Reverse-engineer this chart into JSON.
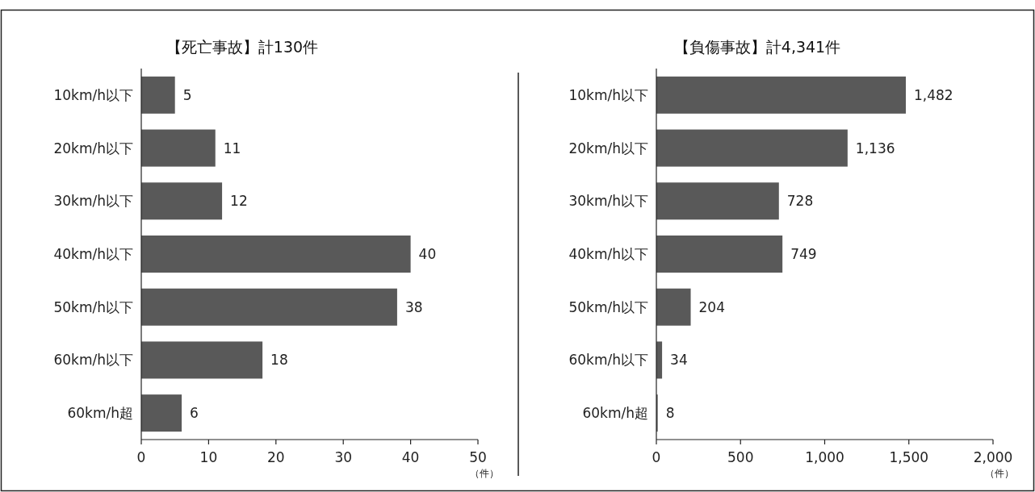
{
  "chart_data": [
    {
      "type": "bar",
      "orientation": "horizontal",
      "title": "【死亡事故】計130件",
      "categories": [
        "10km/h以下",
        "20km/h以下",
        "30km/h以下",
        "40km/h以下",
        "50km/h以下",
        "60km/h以下",
        "60km/h超"
      ],
      "values": [
        5,
        11,
        12,
        40,
        38,
        18,
        6
      ],
      "color": "#595959",
      "xlim": [
        0,
        50
      ],
      "xticks": [
        0,
        10,
        20,
        30,
        40,
        50
      ],
      "xlabel": "（件）",
      "data_labels": true
    },
    {
      "type": "bar",
      "orientation": "horizontal",
      "title": "【負傷事故】計4,341件",
      "categories": [
        "10km/h以下",
        "20km/h以下",
        "30km/h以下",
        "40km/h以下",
        "50km/h以下",
        "60km/h以下",
        "60km/h超"
      ],
      "values": [
        1482,
        1136,
        728,
        749,
        204,
        34,
        8
      ],
      "value_labels": [
        "1,482",
        "1,136",
        "728",
        "749",
        "204",
        "34",
        "8"
      ],
      "color": "#595959",
      "xlim": [
        0,
        2000
      ],
      "xticks": [
        0,
        500,
        {
          "value": 1000,
          "label": "1,000"
        },
        {
          "value": 1500,
          "label": "1,500"
        },
        {
          "value": 2000,
          "label": "2,000"
        }
      ],
      "xlabel": "（件）"
    }
  ]
}
